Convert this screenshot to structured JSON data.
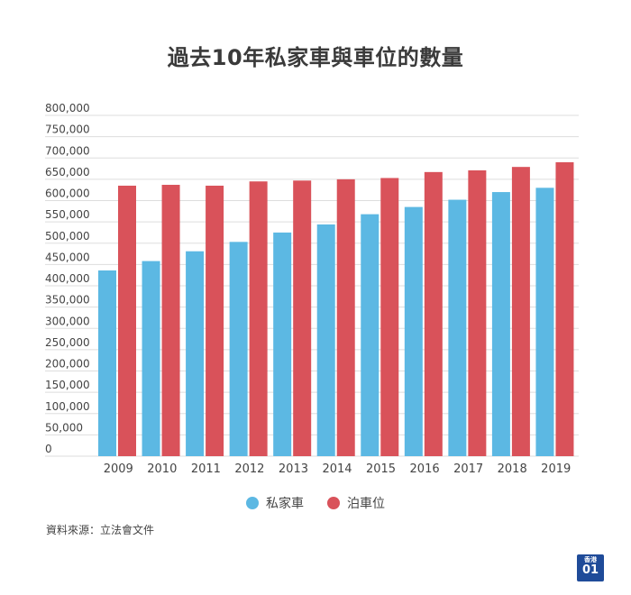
{
  "colors": {
    "private_car": "#5cb8e3",
    "parking_space": "#d9525a",
    "grid": "#dddddd",
    "text": "#333333"
  },
  "logo": {
    "label_top": "香港",
    "label_bottom": "01",
    "icon": "hk01-logo-icon"
  },
  "footer": {
    "source": "資料來源：立法會文件"
  },
  "chart_data": {
    "type": "bar",
    "title": "過去10年私家車與車位的數量",
    "xlabel": "",
    "ylabel": "",
    "ylim": [
      0,
      800000
    ],
    "grid": true,
    "legend_position": "bottom-center",
    "yticks": [
      "0",
      "50,000",
      "100,000",
      "150,000",
      "200,000",
      "250,000",
      "300,000",
      "350,000",
      "400,000",
      "450,000",
      "500,000",
      "550,000",
      "600,000",
      "650,000",
      "700,000",
      "750,000",
      "800,000"
    ],
    "categories": [
      "2009",
      "2010",
      "2011",
      "2012",
      "2013",
      "2014",
      "2015",
      "2016",
      "2017",
      "2018",
      "2019"
    ],
    "series": [
      {
        "name": "私家車",
        "color": "#5cb8e3",
        "values": [
          436000,
          458000,
          481000,
          503000,
          525000,
          544000,
          568000,
          585000,
          602000,
          620000,
          630000
        ]
      },
      {
        "name": "泊車位",
        "color": "#d9525a",
        "values": [
          635000,
          637000,
          635000,
          645000,
          647000,
          650000,
          653000,
          667000,
          671000,
          679000,
          690000
        ]
      }
    ]
  }
}
